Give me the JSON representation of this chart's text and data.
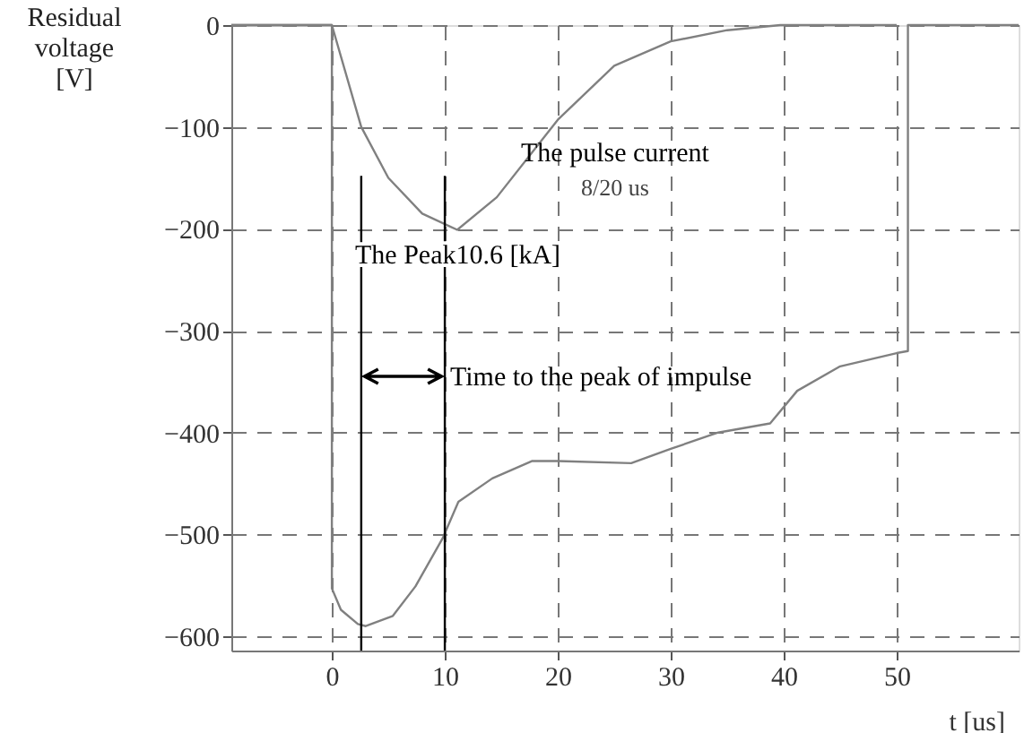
{
  "chart_data": {
    "type": "line",
    "xlabel": "t [us]",
    "ylabel": "Residual voltage [V]",
    "xlim": [
      -8.9,
      60.8
    ],
    "ylim": [
      -614,
      0
    ],
    "xticks": [
      0,
      10,
      20,
      30,
      40,
      50
    ],
    "yticks": [
      0,
      -100,
      -200,
      -300,
      -400,
      -500,
      -600
    ],
    "grid": true,
    "line_style": "solid",
    "marker": "none",
    "series": [
      {
        "color": "#808080",
        "x": [
          -8.9,
          0,
          2.6,
          5,
          8,
          11.1,
          14.6,
          20,
          25,
          30,
          35,
          39.7,
          50
        ],
        "values": [
          0,
          0,
          -100,
          -150,
          -185,
          -201,
          -169,
          -93,
          -40,
          -16,
          -5,
          0,
          0
        ]
      },
      {
        "color": "#808080",
        "x": [
          -8.9,
          0,
          0,
          0.8,
          2.3,
          3,
          5.4,
          7.4,
          9.8,
          11.2,
          14.2,
          17.7,
          20,
          26.5,
          30,
          34.2,
          38.8,
          41.2,
          45,
          50,
          51,
          51,
          60.8
        ],
        "values": [
          0,
          0,
          -553,
          -574,
          -588,
          -590,
          -580,
          -551,
          -504,
          -468,
          -445,
          -428,
          -428,
          -430,
          -416,
          -400,
          -391,
          -359,
          -335,
          -322,
          -320,
          0,
          0
        ]
      },
      {
        "color": "#000000",
        "x": [
          2.6,
          2.6
        ],
        "values": [
          -148,
          -614
        ]
      },
      {
        "color": "#000000",
        "x": [
          10,
          10
        ],
        "values": [
          -148,
          -614
        ]
      }
    ],
    "annotations": [
      "The pulse current",
      "8/20 us",
      "The Peak10.6 [kA]",
      "Time to the peak of impulse"
    ]
  }
}
